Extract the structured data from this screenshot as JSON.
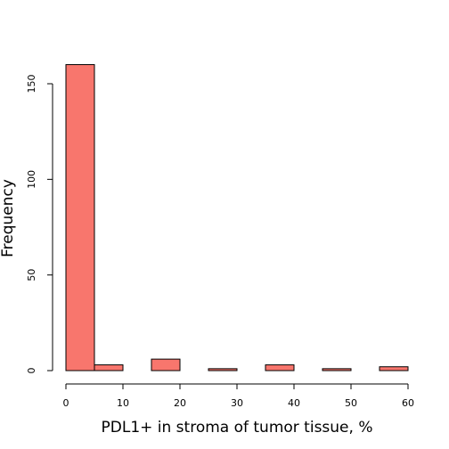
{
  "chart_data": {
    "type": "bar",
    "subtype": "histogram",
    "xlabel": "PDL1+ in stroma of tumor tissue, %",
    "ylabel": "Frequency",
    "bins": [
      {
        "start": 0,
        "end": 5,
        "count": 160
      },
      {
        "start": 5,
        "end": 10,
        "count": 3
      },
      {
        "start": 10,
        "end": 15,
        "count": 0
      },
      {
        "start": 15,
        "end": 20,
        "count": 6
      },
      {
        "start": 20,
        "end": 25,
        "count": 0
      },
      {
        "start": 25,
        "end": 30,
        "count": 1
      },
      {
        "start": 30,
        "end": 35,
        "count": 0
      },
      {
        "start": 35,
        "end": 40,
        "count": 3
      },
      {
        "start": 40,
        "end": 45,
        "count": 0
      },
      {
        "start": 45,
        "end": 50,
        "count": 1
      },
      {
        "start": 50,
        "end": 55,
        "count": 0
      },
      {
        "start": 55,
        "end": 60,
        "count": 2
      }
    ],
    "xlim": [
      0,
      60
    ],
    "ylim": [
      0,
      160
    ],
    "x_ticks": [
      "0",
      "10",
      "20",
      "30",
      "40",
      "50",
      "60"
    ],
    "y_ticks": [
      "0",
      "50",
      "100",
      "150"
    ],
    "bar_color": "#f8766d",
    "bar_border_color": "#000000",
    "grid": false
  }
}
